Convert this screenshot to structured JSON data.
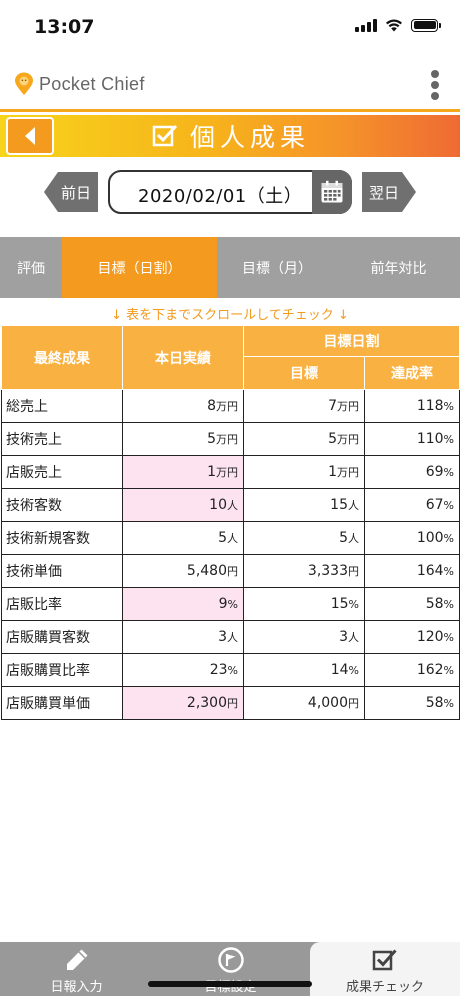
{
  "status_bar": {
    "time": "13:07"
  },
  "app": {
    "logo_text": "Pocket Chief"
  },
  "banner": {
    "title": "個人成果"
  },
  "date_nav": {
    "prev_label": "前日",
    "next_label": "翌日",
    "date": "2020/02/01（土）"
  },
  "tabs": [
    {
      "label": "評価"
    },
    {
      "label": "目標（日割）",
      "active": true
    },
    {
      "label": "目標（月）"
    },
    {
      "label": "前年対比"
    }
  ],
  "scroll_hint": "↓ 表を下までスクロールしてチェック ↓",
  "table": {
    "headers": {
      "item": "最終成果",
      "actual": "本日実績",
      "group": "目標日割",
      "target": "目標",
      "rate": "達成率"
    },
    "rows": [
      {
        "label": "総売上",
        "actual": "8",
        "actual_unit": "万円",
        "target": "7",
        "target_unit": "万円",
        "rate": "118",
        "rate_unit": "%",
        "highlight": false
      },
      {
        "label": "技術売上",
        "actual": "5",
        "actual_unit": "万円",
        "target": "5",
        "target_unit": "万円",
        "rate": "110",
        "rate_unit": "%",
        "highlight": false
      },
      {
        "label": "店販売上",
        "actual": "1",
        "actual_unit": "万円",
        "target": "1",
        "target_unit": "万円",
        "rate": "69",
        "rate_unit": "%",
        "highlight": true
      },
      {
        "label": "技術客数",
        "actual": "10",
        "actual_unit": "人",
        "target": "15",
        "target_unit": "人",
        "rate": "67",
        "rate_unit": "%",
        "highlight": true
      },
      {
        "label": "技術新規客数",
        "actual": "5",
        "actual_unit": "人",
        "target": "5",
        "target_unit": "人",
        "rate": "100",
        "rate_unit": "%",
        "highlight": false
      },
      {
        "label": "技術単価",
        "actual": "5,480",
        "actual_unit": "円",
        "target": "3,333",
        "target_unit": "円",
        "rate": "164",
        "rate_unit": "%",
        "highlight": false
      },
      {
        "label": "店販比率",
        "actual": "9",
        "actual_unit": "%",
        "target": "15",
        "target_unit": "%",
        "rate": "58",
        "rate_unit": "%",
        "highlight": true
      },
      {
        "label": "店販購買客数",
        "actual": "3",
        "actual_unit": "人",
        "target": "3",
        "target_unit": "人",
        "rate": "120",
        "rate_unit": "%",
        "highlight": false
      },
      {
        "label": "店販購買比率",
        "actual": "23",
        "actual_unit": "%",
        "target": "14",
        "target_unit": "%",
        "rate": "162",
        "rate_unit": "%",
        "highlight": false
      },
      {
        "label": "店販購買単価",
        "actual": "2,300",
        "actual_unit": "円",
        "target": "4,000",
        "target_unit": "円",
        "rate": "58",
        "rate_unit": "%",
        "highlight": true
      }
    ]
  },
  "bottom_nav": [
    {
      "label": "日報入力",
      "icon": "pencil-icon"
    },
    {
      "label": "目標設定",
      "icon": "flag-icon"
    },
    {
      "label": "成果チェック",
      "icon": "checkbox-icon",
      "active": true
    }
  ],
  "colors": {
    "accent": "#f39a1f",
    "header_cell": "#f9b242",
    "highlight": "#fde3f0",
    "tab_bg": "#a0a0a0"
  }
}
